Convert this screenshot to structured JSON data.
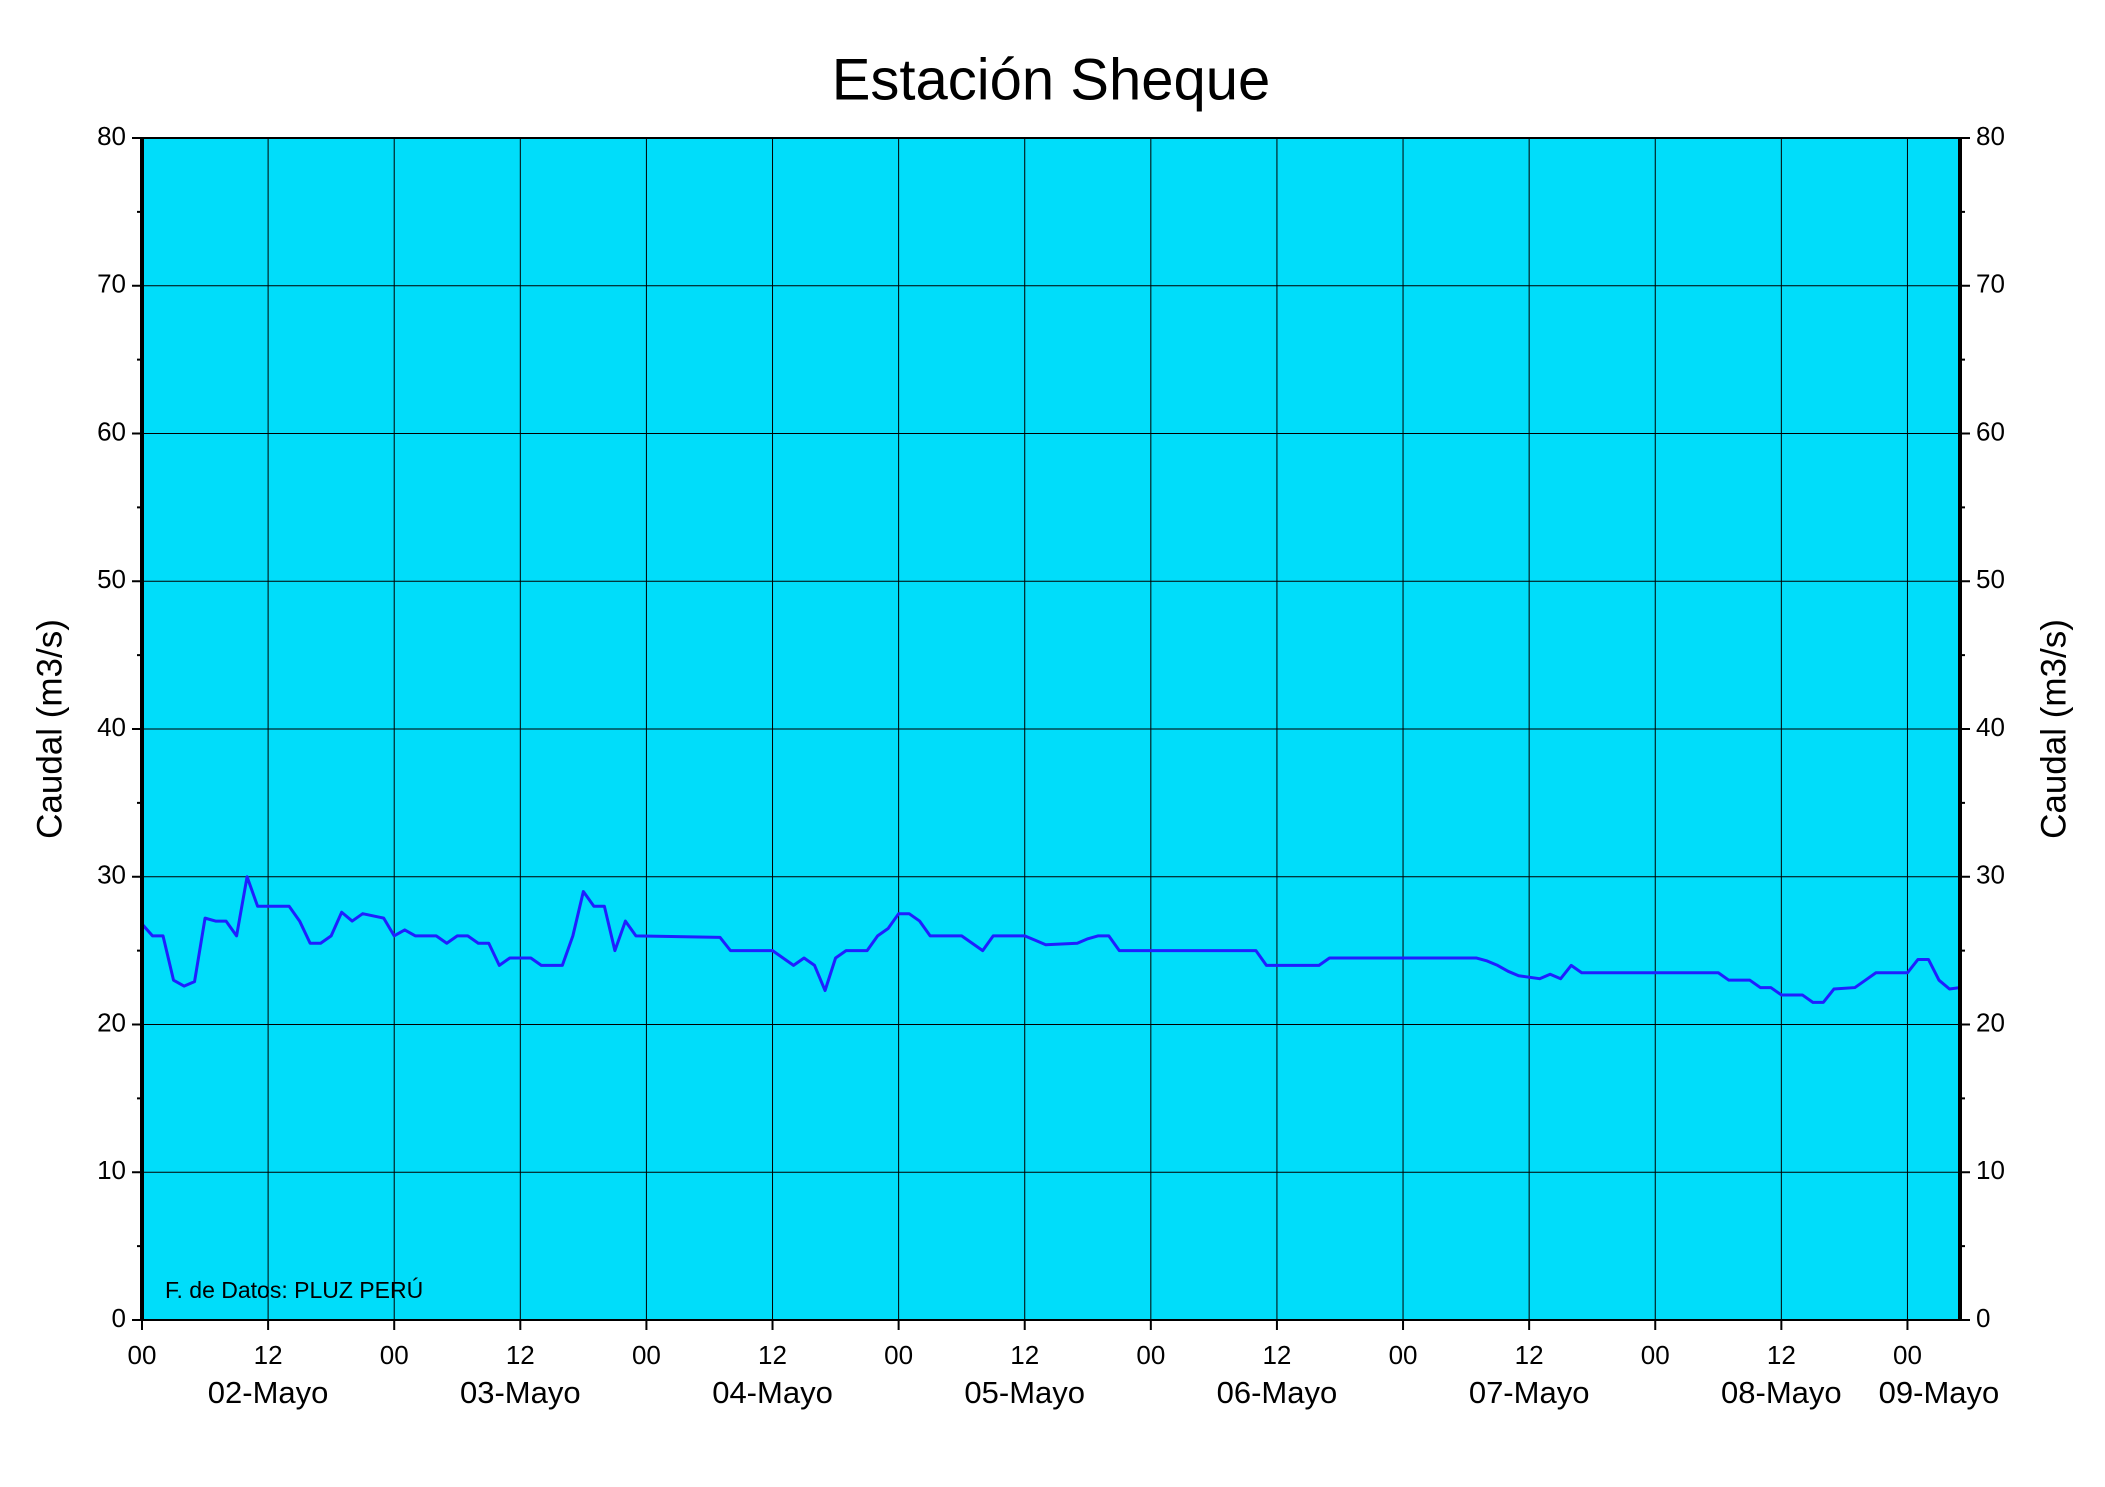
{
  "chart_data": {
    "type": "line",
    "title": "Estación Sheque",
    "ylabel": "Caudal (m3/s)",
    "y2label": "Caudal (m3/s)",
    "annotation": "F. de Datos: PLUZ PERÚ",
    "background": "#00ddfa",
    "grid": true,
    "xlim": [
      0,
      173
    ],
    "ylim": [
      0,
      80
    ],
    "xticks": [
      {
        "value": 0,
        "label": "00"
      },
      12,
      {
        "value": 24,
        "label": "00"
      },
      {
        "value": 36,
        "label": "12"
      },
      {
        "value": 48,
        "label": "00"
      },
      {
        "value": 60,
        "label": "12"
      },
      {
        "value": 72,
        "label": "00"
      },
      {
        "value": 84,
        "label": "12"
      },
      {
        "value": 96,
        "label": "00"
      },
      {
        "value": 108,
        "label": "12"
      },
      {
        "value": 120,
        "label": "00"
      },
      {
        "value": 132,
        "label": "12"
      },
      {
        "value": 144,
        "label": "00"
      },
      {
        "value": 156,
        "label": "12"
      },
      {
        "value": 168,
        "label": "00"
      }
    ],
    "xday_labels": [
      {
        "value": 12,
        "label": "02-Mayo"
      },
      {
        "value": 36,
        "label": "03-Mayo"
      },
      {
        "value": 60,
        "label": "04-Mayo"
      },
      {
        "value": 84,
        "label": "05-Mayo"
      },
      {
        "value": 108,
        "label": "06-Mayo"
      },
      {
        "value": 132,
        "label": "07-Mayo"
      },
      {
        "value": 156,
        "label": "08-Mayo"
      },
      {
        "value": 171,
        "label": "09-Mayo"
      }
    ],
    "yticks": [
      0,
      10,
      20,
      30,
      40,
      50,
      60,
      70,
      80
    ],
    "yminorticks": [
      5,
      15,
      25,
      35,
      45,
      55,
      65,
      75
    ],
    "series": [
      {
        "name": "Caudal",
        "color": "#1f1fff",
        "x": [
          0,
          1,
          2,
          3,
          4,
          5,
          6,
          7,
          8,
          9,
          10,
          11,
          14,
          15,
          16,
          17,
          18,
          19,
          20,
          21,
          23,
          24,
          25,
          26,
          28,
          29,
          30,
          31,
          32,
          33,
          34,
          35,
          37,
          38,
          40,
          41,
          42,
          43,
          44,
          45,
          46,
          47,
          55,
          56,
          60,
          61,
          62,
          63,
          64,
          65,
          66,
          67,
          69,
          70,
          71,
          72,
          73,
          74,
          75,
          78,
          79,
          80,
          81,
          84,
          85,
          86,
          89,
          90,
          91,
          92,
          93,
          106,
          107,
          112,
          113,
          127,
          128,
          129,
          130,
          131,
          133,
          134,
          135,
          136,
          137,
          150,
          151,
          153,
          154,
          155,
          156,
          158,
          159,
          160,
          161,
          163,
          164,
          165,
          168,
          169,
          170,
          171,
          172,
          173
        ],
        "values": [
          26.8,
          26,
          26,
          23,
          22.6,
          22.9,
          27.2,
          27,
          27,
          26,
          30,
          28,
          28,
          27,
          25.5,
          25.5,
          26,
          27.6,
          27,
          27.5,
          27.2,
          26,
          26.4,
          26,
          26,
          25.5,
          26,
          26,
          25.5,
          25.5,
          24,
          24.5,
          24.5,
          24,
          24,
          26,
          29,
          28,
          28,
          25,
          27,
          26,
          25.9,
          25,
          25,
          24.5,
          24,
          24.5,
          24,
          22.3,
          24.5,
          25,
          25,
          26,
          26.5,
          27.5,
          27.5,
          27,
          26,
          26,
          25.5,
          25,
          26,
          26,
          25.7,
          25.4,
          25.5,
          25.8,
          26,
          26,
          25,
          25,
          24,
          24,
          24.5,
          24.5,
          24.3,
          24,
          23.6,
          23.3,
          23.1,
          23.4,
          23.1,
          24,
          23.5,
          23.5,
          23,
          23,
          22.5,
          22.5,
          22,
          22,
          21.5,
          21.5,
          22.4,
          22.5,
          23,
          23.5,
          23.5,
          24.4,
          24.4,
          23,
          22.4,
          22.5
        ]
      }
    ]
  }
}
